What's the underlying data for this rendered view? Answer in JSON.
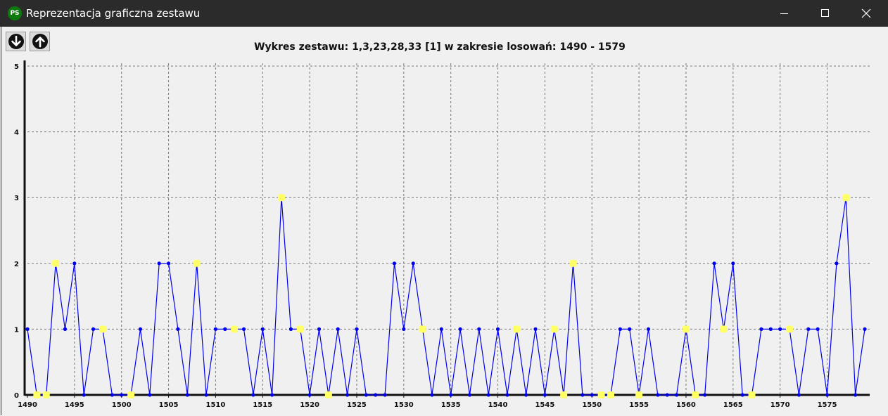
{
  "window": {
    "title": "Reprezentacja graficzna zestawu",
    "app_icon_text": "PS"
  },
  "toolbar": {
    "down_icon": "arrow-down-circle-icon",
    "up_icon": "arrow-up-circle-icon"
  },
  "chart_data": {
    "type": "line",
    "title": "Wykres zestawu: 1,3,23,28,33 [1] w zakresie losowań: 1490 - 1579",
    "xlabel": "",
    "ylabel": "",
    "xlim": [
      1490,
      1579
    ],
    "ylim": [
      0,
      5
    ],
    "x_ticks": [
      1490,
      1495,
      1500,
      1505,
      1510,
      1515,
      1520,
      1525,
      1530,
      1535,
      1540,
      1545,
      1550,
      1555,
      1560,
      1565,
      1570,
      1575
    ],
    "y_ticks": [
      0,
      1,
      2,
      3,
      4,
      5
    ],
    "grid": true,
    "line_color": "#0000ee",
    "marker_color": "#0000ee",
    "highlight_color": "#ffff66",
    "x": [
      1490,
      1491,
      1492,
      1493,
      1494,
      1495,
      1496,
      1497,
      1498,
      1499,
      1500,
      1501,
      1502,
      1503,
      1504,
      1505,
      1506,
      1507,
      1508,
      1509,
      1510,
      1511,
      1512,
      1513,
      1514,
      1515,
      1516,
      1517,
      1518,
      1519,
      1520,
      1521,
      1522,
      1523,
      1524,
      1525,
      1526,
      1527,
      1528,
      1529,
      1530,
      1531,
      1532,
      1533,
      1534,
      1535,
      1536,
      1537,
      1538,
      1539,
      1540,
      1541,
      1542,
      1543,
      1544,
      1545,
      1546,
      1547,
      1548,
      1549,
      1550,
      1551,
      1552,
      1553,
      1554,
      1555,
      1556,
      1557,
      1558,
      1559,
      1560,
      1561,
      1562,
      1563,
      1564,
      1565,
      1566,
      1567,
      1568,
      1569,
      1570,
      1571,
      1572,
      1573,
      1574,
      1575,
      1576,
      1577,
      1578,
      1579
    ],
    "values": [
      1,
      0,
      0,
      2,
      1,
      2,
      0,
      1,
      1,
      0,
      0,
      0,
      1,
      0,
      2,
      2,
      1,
      0,
      2,
      0,
      1,
      1,
      1,
      1,
      0,
      1,
      0,
      3,
      1,
      1,
      0,
      1,
      0,
      1,
      0,
      1,
      0,
      0,
      0,
      2,
      1,
      2,
      1,
      0,
      1,
      0,
      1,
      0,
      1,
      0,
      1,
      0,
      1,
      0,
      1,
      0,
      1,
      0,
      2,
      0,
      0,
      0,
      0,
      1,
      1,
      0,
      1,
      0,
      0,
      0,
      1,
      0,
      0,
      2,
      1,
      2,
      0,
      0,
      1,
      1,
      1,
      1,
      0,
      1,
      1,
      0,
      2,
      3,
      0,
      1
    ],
    "highlighted_x": [
      1491,
      1492,
      1493,
      1498,
      1501,
      1508,
      1512,
      1517,
      1519,
      1522,
      1532,
      1542,
      1546,
      1547,
      1548,
      1551,
      1552,
      1555,
      1560,
      1561,
      1564,
      1567,
      1571,
      1577
    ]
  }
}
